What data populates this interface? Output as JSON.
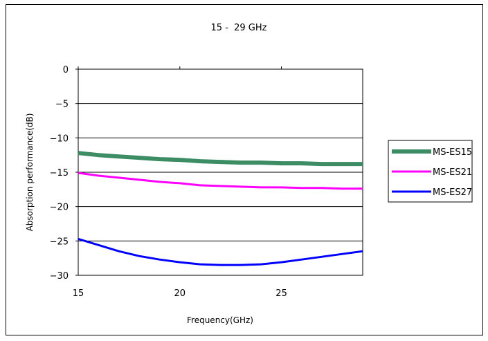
{
  "chart_data": {
    "type": "line",
    "title": "15 -  29 GHz",
    "xlabel": "Frequency(GHz)",
    "ylabel": "Absorption performance(dB)",
    "xlim": [
      15,
      29
    ],
    "ylim": [
      -30,
      0
    ],
    "x_ticks": [
      15,
      20,
      25
    ],
    "y_ticks": [
      0,
      -5,
      -10,
      -15,
      -20,
      -25,
      -30
    ],
    "grid": "horizontal",
    "legend_position": "right",
    "x": [
      15,
      16,
      17,
      18,
      19,
      20,
      21,
      22,
      23,
      24,
      25,
      26,
      27,
      28,
      29
    ],
    "series": [
      {
        "name": "MS-ES15",
        "color": "#3c8c64",
        "values": [
          -12.2,
          -12.5,
          -12.7,
          -12.9,
          -13.1,
          -13.2,
          -13.4,
          -13.5,
          -13.6,
          -13.6,
          -13.7,
          -13.7,
          -13.8,
          -13.8,
          -13.8
        ]
      },
      {
        "name": "MS-ES21",
        "color": "#ff00ff",
        "values": [
          -15.1,
          -15.5,
          -15.8,
          -16.1,
          -16.4,
          -16.6,
          -16.9,
          -17.0,
          -17.1,
          -17.2,
          -17.2,
          -17.3,
          -17.3,
          -17.4,
          -17.4
        ]
      },
      {
        "name": "MS-ES27",
        "color": "#0000ff",
        "values": [
          -24.7,
          -25.6,
          -26.5,
          -27.2,
          -27.7,
          -28.1,
          -28.4,
          -28.5,
          -28.5,
          -28.4,
          -28.1,
          -27.7,
          -27.3,
          -26.9,
          -26.5
        ]
      }
    ]
  }
}
